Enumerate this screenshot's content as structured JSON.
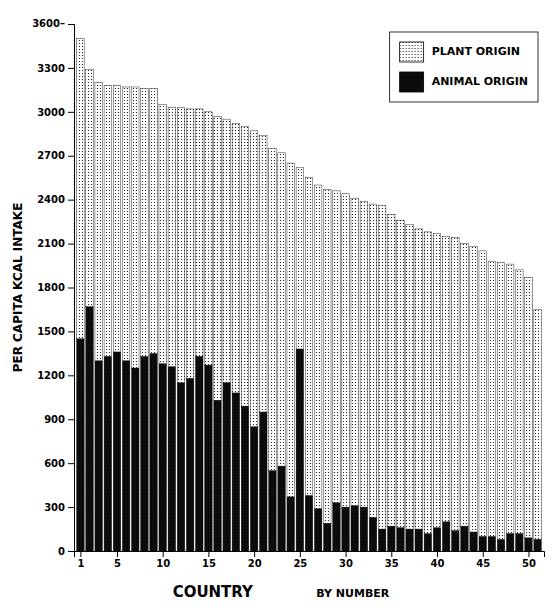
{
  "chart_data": {
    "type": "bar",
    "stacked": true,
    "x": [
      1,
      2,
      3,
      4,
      5,
      6,
      7,
      8,
      9,
      10,
      11,
      12,
      13,
      14,
      15,
      16,
      17,
      18,
      19,
      20,
      21,
      22,
      23,
      24,
      25,
      26,
      27,
      28,
      29,
      30,
      31,
      32,
      33,
      34,
      35,
      36,
      37,
      38,
      39,
      40,
      41,
      42,
      43,
      44,
      45,
      46,
      47,
      48,
      49,
      50,
      51
    ],
    "series": [
      {
        "name": "ANIMAL ORIGIN",
        "color": "#0d0d0d",
        "values": [
          1450,
          1670,
          1300,
          1330,
          1360,
          1300,
          1250,
          1330,
          1350,
          1280,
          1260,
          1150,
          1180,
          1330,
          1270,
          1030,
          1150,
          1080,
          990,
          850,
          950,
          550,
          580,
          370,
          1380,
          380,
          290,
          190,
          330,
          300,
          310,
          300,
          230,
          150,
          170,
          160,
          150,
          150,
          120,
          160,
          200,
          140,
          170,
          130,
          100,
          100,
          80,
          120,
          120,
          90,
          80
        ]
      },
      {
        "name": "PLANT ORIGIN",
        "color": "#ffffff",
        "values": [
          2050,
          1620,
          1900,
          1850,
          1820,
          1870,
          1920,
          1830,
          1810,
          1770,
          1770,
          1880,
          1840,
          1690,
          1730,
          1940,
          1800,
          1840,
          1910,
          2020,
          1890,
          2200,
          2140,
          2280,
          1240,
          2170,
          2210,
          2280,
          2130,
          2140,
          2100,
          2090,
          2140,
          2210,
          2130,
          2100,
          2080,
          2050,
          2060,
          2010,
          1950,
          2000,
          1930,
          1950,
          1950,
          1880,
          1890,
          1840,
          1800,
          1780,
          1570
        ]
      }
    ],
    "xlim": [
      0.3,
      51.7
    ],
    "xticks": [
      1,
      5,
      10,
      15,
      20,
      25,
      30,
      35,
      40,
      45,
      50
    ],
    "ylim": [
      0,
      3600
    ],
    "yticks": [
      0,
      300,
      600,
      900,
      1200,
      1500,
      1800,
      2100,
      2400,
      2700,
      3000,
      3300
    ],
    "ylabel": "PER CAPITA KCAL INTAKE",
    "xlabel": "COUNTRY",
    "annotations": [
      {
        "text": "3600–",
        "y": 3600
      },
      {
        "text": "BY NUMBER"
      }
    ],
    "legend": "upper right",
    "grid": false
  }
}
